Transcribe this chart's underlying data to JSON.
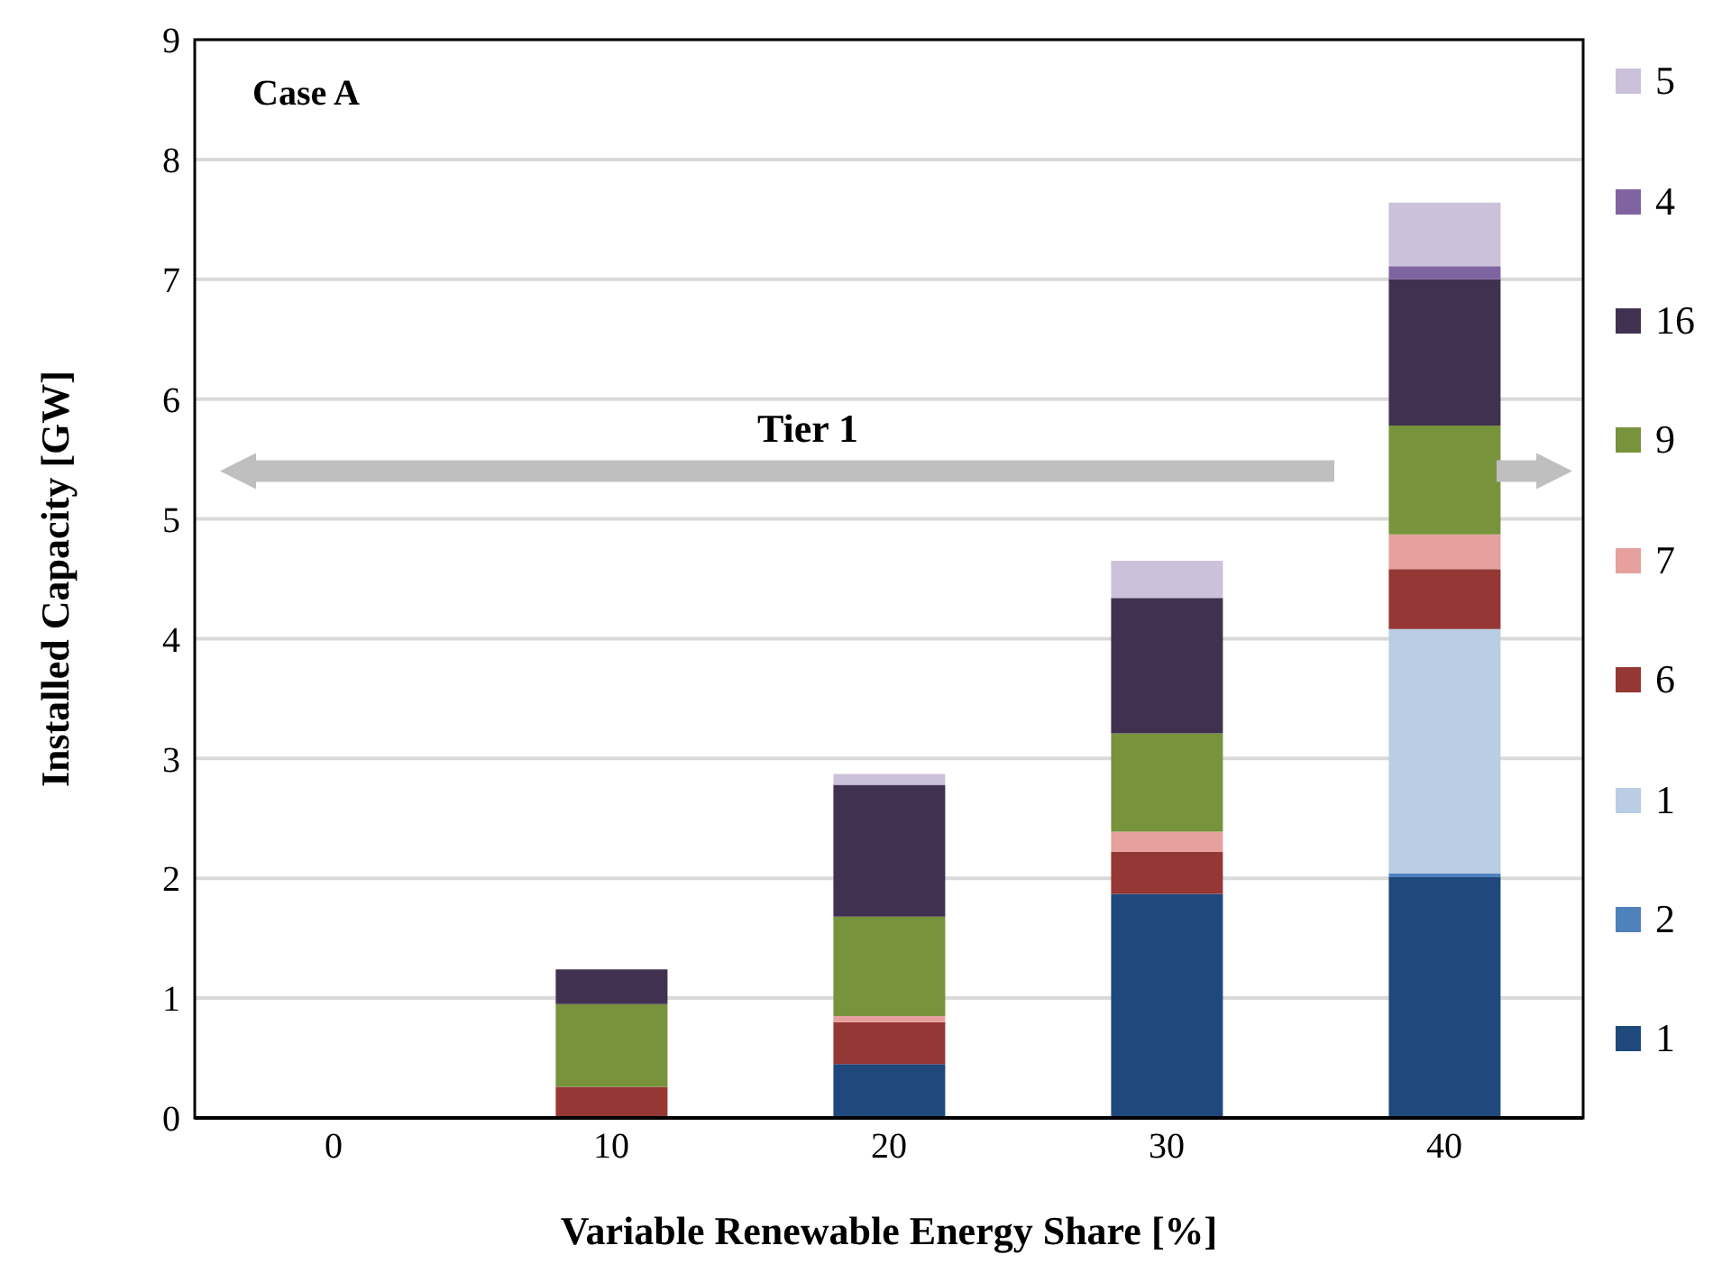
{
  "chart_data": {
    "type": "bar",
    "stacked": true,
    "categories": [
      "0",
      "10",
      "20",
      "30",
      "40"
    ],
    "xlabel": "Variable Renewable Energy Share [%]",
    "ylabel": "Installed Capacity [GW]",
    "ylim": [
      0,
      9
    ],
    "yticks": [
      0,
      1,
      2,
      3,
      4,
      5,
      6,
      7,
      8,
      9
    ],
    "grid": "y",
    "legend": "right",
    "annotations": [
      "Case A",
      "Tier 1"
    ],
    "series": [
      {
        "name": "1",
        "color": "#1f497d",
        "values": [
          0,
          0,
          0.45,
          1.87,
          2.01
        ]
      },
      {
        "name": "2",
        "color": "#4f81bd",
        "values": [
          0,
          0,
          0,
          0,
          0.03
        ]
      },
      {
        "name": "1",
        "color": "#b9cde5",
        "values": [
          0,
          0,
          0,
          0,
          2.04
        ]
      },
      {
        "name": "6",
        "color": "#953735",
        "values": [
          0,
          0.26,
          0.35,
          0.35,
          0.5
        ]
      },
      {
        "name": "7",
        "color": "#e6a09d",
        "values": [
          0,
          0,
          0.05,
          0.17,
          0.29
        ]
      },
      {
        "name": "9",
        "color": "#77933c",
        "values": [
          0,
          0.69,
          0.83,
          0.82,
          0.91
        ]
      },
      {
        "name": "16",
        "color": "#403151",
        "values": [
          0,
          0.29,
          1.1,
          1.13,
          1.22
        ]
      },
      {
        "name": "4",
        "color": "#8064a2",
        "values": [
          0,
          0,
          0,
          0,
          0.11
        ]
      },
      {
        "name": "5",
        "color": "#ccc1da",
        "values": [
          0,
          0,
          0.09,
          0.31,
          0.53
        ]
      }
    ]
  }
}
